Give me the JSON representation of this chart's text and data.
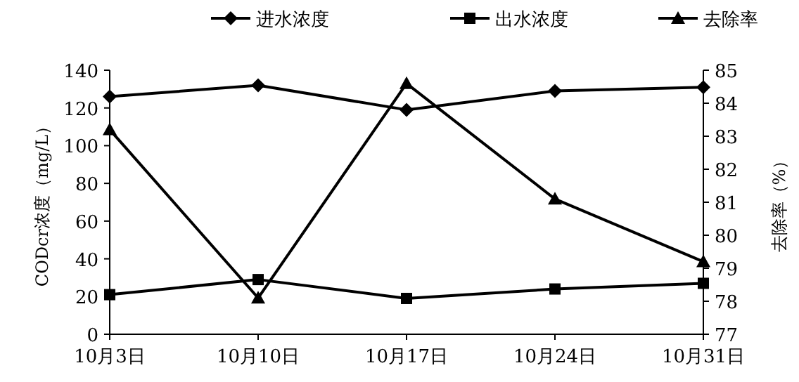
{
  "chart_data": {
    "type": "line",
    "ylabel": "CODcr浓度（mg/L）",
    "y2label": "去除率（%）",
    "categories": [
      "10月3日",
      "10月10日",
      "10月17日",
      "10月24日",
      "10月31日"
    ],
    "series": [
      {
        "name": "进水浓度",
        "color": "#000000",
        "marker": "diamond",
        "values": [
          126,
          132,
          119,
          129,
          131
        ]
      },
      {
        "name": "出水浓度",
        "color": "#000000",
        "marker": "square",
        "values": [
          21,
          29,
          19,
          24,
          27
        ]
      },
      {
        "name": "去除率",
        "color": "#000000",
        "marker": "triangle",
        "axis": "y2",
        "values": [
          83.2,
          78.1,
          84.6,
          81.1,
          79.2
        ]
      }
    ],
    "ylim": [
      0,
      140
    ],
    "yticks": [
      0,
      20,
      40,
      60,
      80,
      100,
      120,
      140
    ],
    "y2lim": [
      77,
      85
    ],
    "y2ticks": [
      77,
      78,
      79,
      80,
      81,
      82,
      83,
      84,
      85
    ],
    "grid": false,
    "legend": "top",
    "line_style": "solid"
  }
}
